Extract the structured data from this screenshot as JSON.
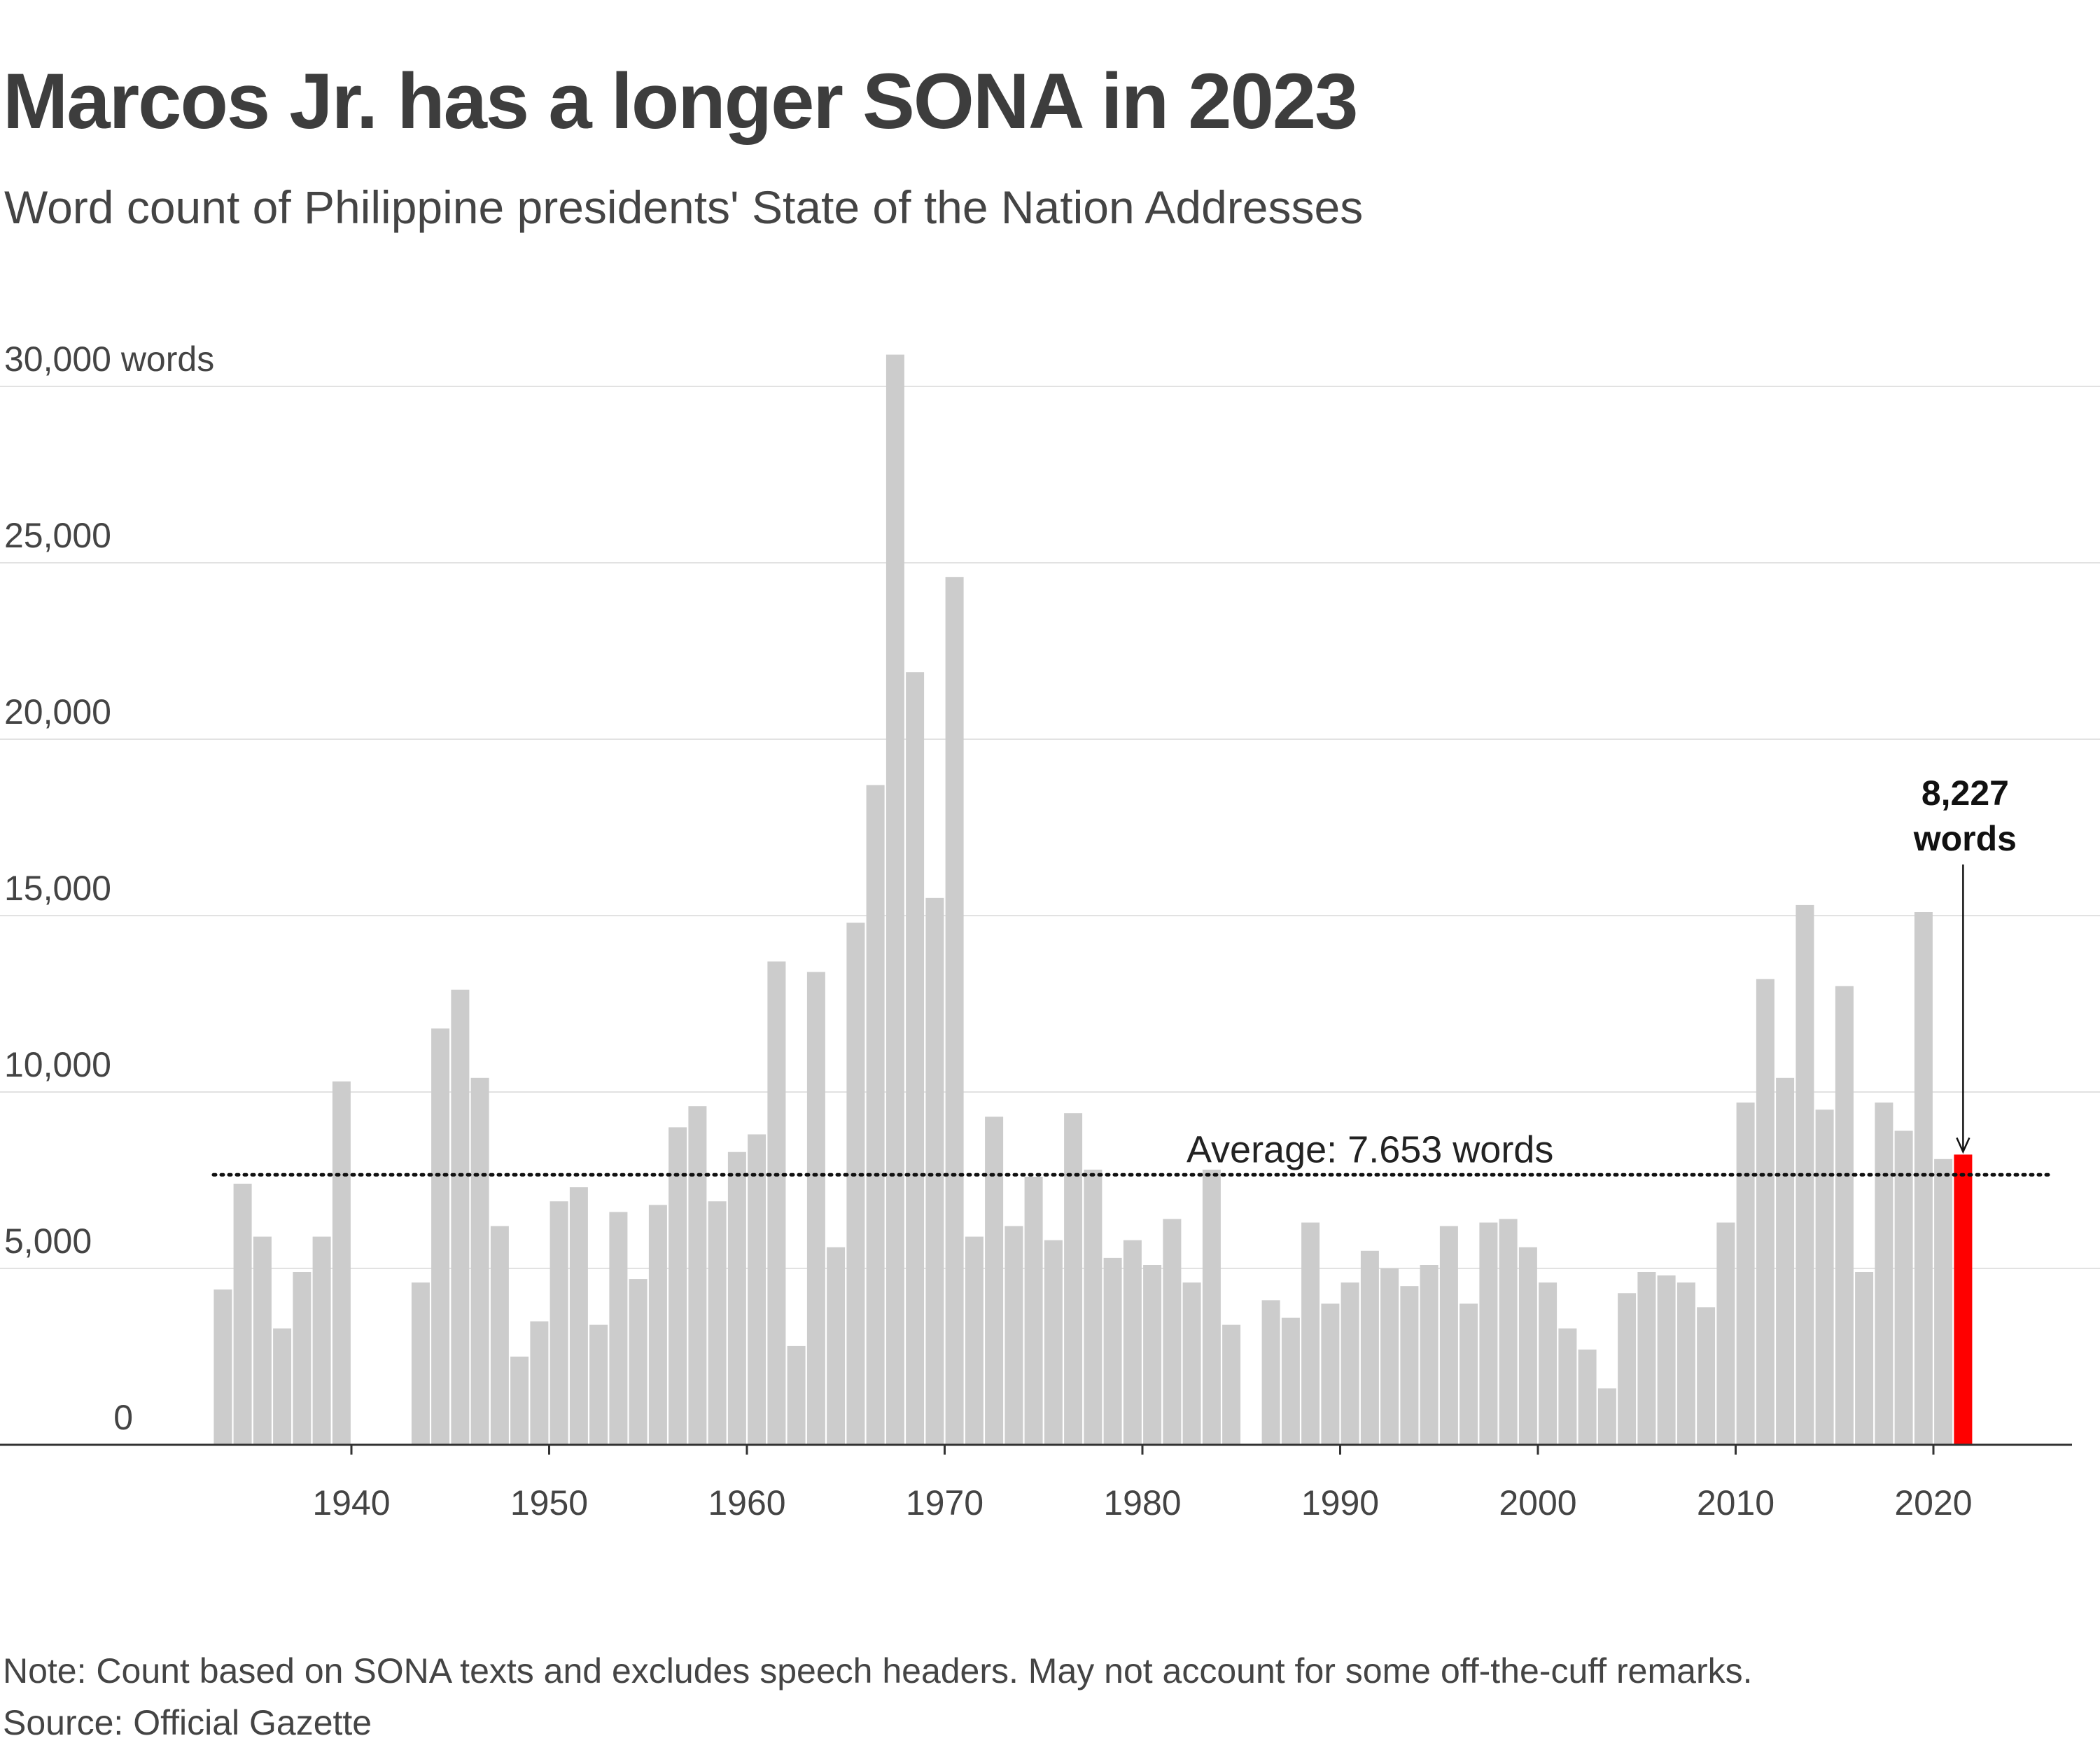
{
  "title": "Marcos Jr. has a longer SONA in 2023",
  "subtitle": "Word count of Philippine presidents' State of the Nation Addresses",
  "note": "Note: Count based on SONA texts and excludes speech headers. May not account for some off-the-cuff remarks.",
  "source": "Source: Official Gazette",
  "colors": {
    "bar": "#cccccc",
    "highlight": "#ff0000",
    "grid": "#e2e2e2",
    "axis": "#333333"
  },
  "chart_data": {
    "type": "bar",
    "x_tick_labels": [
      "1940",
      "1950",
      "1960",
      "1970",
      "1980",
      "1990",
      "2000",
      "2010",
      "2020"
    ],
    "y_tick_labels": [
      "0",
      "5,000",
      "10,000",
      "15,000",
      "20,000",
      "25,000",
      "30,000 words"
    ],
    "ylim": [
      0,
      30000
    ],
    "grid": true,
    "average": {
      "value": 7653,
      "label": "Average: 7.653 words"
    },
    "highlight": {
      "x": 2023,
      "value": 8227,
      "label_line1": "8,227",
      "label_line2": "words"
    },
    "x": [
      1935,
      1936,
      1937,
      1938,
      1939,
      1940,
      1941,
      1945,
      1946,
      1947,
      1948,
      1949,
      1950,
      1951,
      1952,
      1953,
      1954,
      1955,
      1956,
      1957,
      1958,
      1959,
      1960,
      1961,
      1962,
      1963,
      1964,
      1965,
      1966,
      1967,
      1968,
      1969,
      1970,
      1971,
      1972,
      1973,
      1974,
      1975,
      1976,
      1977,
      1978,
      1979,
      1980,
      1981,
      1982,
      1983,
      1984,
      1985,
      1986,
      1988,
      1989,
      1990,
      1991,
      1992,
      1993,
      1994,
      1995,
      1996,
      1997,
      1998,
      1999,
      2000,
      2001,
      2002,
      2003,
      2004,
      2005,
      2006,
      2007,
      2008,
      2009,
      2010,
      2011,
      2012,
      2013,
      2014,
      2015,
      2016,
      2017,
      2018,
      2019,
      2020,
      2021,
      2022,
      2023
    ],
    "values": [
      4400,
      7400,
      5900,
      3300,
      4900,
      5900,
      10300,
      4600,
      11800,
      12900,
      10400,
      6200,
      2500,
      3500,
      6900,
      7300,
      3400,
      6600,
      4700,
      6800,
      9000,
      9600,
      6900,
      8300,
      8800,
      13700,
      2800,
      13400,
      5600,
      14800,
      18700,
      30900,
      21900,
      15500,
      24600,
      5900,
      9300,
      6200,
      7600,
      5800,
      9400,
      7800,
      5300,
      5800,
      5100,
      6400,
      4600,
      7800,
      3400,
      4100,
      3600,
      6300,
      4000,
      4600,
      5500,
      5000,
      4500,
      5100,
      6200,
      4000,
      6300,
      6400,
      5600,
      4600,
      3300,
      2700,
      1600,
      4300,
      4900,
      4800,
      4600,
      3900,
      6300,
      9700,
      13200,
      10400,
      15300,
      9500,
      13000,
      4900,
      9700,
      8900,
      15100,
      8100,
      8227
    ]
  }
}
